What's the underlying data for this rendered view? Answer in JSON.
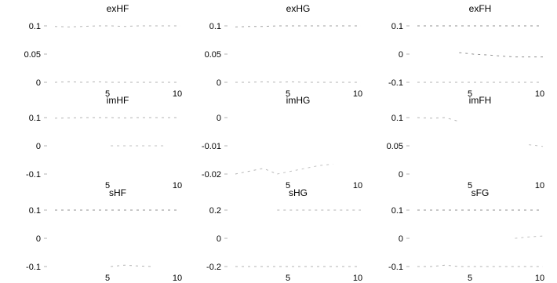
{
  "chart_data": [
    {
      "type": "line",
      "title": "exHF",
      "xlim": [
        1,
        10
      ],
      "ylim": [
        0,
        0.1
      ],
      "xticks": [
        5,
        10
      ],
      "xtick_labels": [
        "5",
        "10"
      ],
      "yticks": [
        0,
        0.05,
        0.1
      ],
      "ytick_labels": [
        "0",
        "0.05",
        "0.1"
      ],
      "series": [
        {
          "color": "#b3b3b3",
          "x": [
            1,
            2,
            3,
            4,
            5,
            6,
            7,
            8,
            9,
            10
          ],
          "y": [
            0.099,
            0.098,
            0.099,
            0.1,
            0.1,
            0.099,
            0.1,
            0.1,
            0.1,
            0.1
          ]
        },
        {
          "color": "#b3b3b3",
          "x": [
            1,
            2,
            3,
            4,
            5,
            6,
            7,
            8,
            9,
            10
          ],
          "y": [
            0.0,
            0.001,
            0.0,
            0.001,
            0.0,
            0.0,
            0.0,
            0.0,
            0.0,
            0.0
          ]
        }
      ]
    },
    {
      "type": "line",
      "title": "exHG",
      "xlim": [
        1,
        10
      ],
      "ylim": [
        0,
        0.1
      ],
      "xticks": [
        5,
        10
      ],
      "xtick_labels": [
        "5",
        "10"
      ],
      "yticks": [
        0,
        0.05,
        0.1
      ],
      "ytick_labels": [
        "0",
        "0.05",
        "0.1"
      ],
      "series": [
        {
          "color": "#a0a0a0",
          "x": [
            1,
            2,
            3,
            4,
            5,
            6,
            7,
            8,
            9,
            10
          ],
          "y": [
            0.098,
            0.099,
            0.099,
            0.1,
            0.1,
            0.1,
            0.1,
            0.1,
            0.1,
            0.1
          ]
        },
        {
          "color": "#b3b3b3",
          "x": [
            1,
            2,
            3,
            4,
            5,
            6,
            7,
            8,
            9,
            10
          ],
          "y": [
            0.0,
            0.0,
            0.001,
            0.0,
            0.001,
            0.0,
            0.0,
            0.0,
            0.0,
            0.0
          ]
        }
      ]
    },
    {
      "type": "line",
      "title": "exFH",
      "xlim": [
        1,
        10
      ],
      "ylim": [
        -0.1,
        0.1
      ],
      "xticks": [
        5,
        10
      ],
      "xtick_labels": [
        "5",
        "10"
      ],
      "yticks": [
        -0.1,
        0,
        0.1
      ],
      "ytick_labels": [
        "-0.1",
        "0",
        "0.1"
      ],
      "series": [
        {
          "color": "#909090",
          "x": [
            1,
            2,
            3,
            4,
            5,
            6,
            7,
            8,
            9,
            10
          ],
          "y": [
            0.1,
            0.1,
            0.1,
            0.1,
            0.1,
            0.1,
            0.1,
            0.1,
            0.1,
            0.1
          ]
        },
        {
          "color": "#909090",
          "x": [
            4,
            5,
            6,
            7,
            8,
            9,
            10
          ],
          "y": [
            0.005,
            0.0,
            -0.003,
            -0.007,
            -0.01,
            -0.01,
            -0.01
          ]
        },
        {
          "color": "#b3b3b3",
          "x": [
            1,
            2,
            3,
            4,
            5,
            6,
            7,
            8,
            9,
            10
          ],
          "y": [
            -0.1,
            -0.1,
            -0.1,
            -0.1,
            -0.1,
            -0.1,
            -0.1,
            -0.1,
            -0.1,
            -0.1
          ]
        }
      ]
    },
    {
      "type": "line",
      "title": "imHF",
      "xlim": [
        1,
        10
      ],
      "ylim": [
        -0.1,
        0.1
      ],
      "xticks": [
        5,
        10
      ],
      "xtick_labels": [
        "5",
        "10"
      ],
      "yticks": [
        -0.1,
        0,
        0.1
      ],
      "ytick_labels": [
        "-0.1",
        "0",
        "0.1"
      ],
      "series": [
        {
          "color": "#b3b3b3",
          "x": [
            1,
            2,
            3,
            4,
            5,
            6,
            7,
            8,
            9,
            10
          ],
          "y": [
            0.098,
            0.099,
            0.1,
            0.1,
            0.1,
            0.099,
            0.1,
            0.1,
            0.1,
            0.1
          ]
        },
        {
          "color": "#c0c0c0",
          "x": [
            5,
            6,
            7,
            8,
            9
          ],
          "y": [
            0.0,
            0.0,
            0.0,
            0.0,
            0.0
          ]
        }
      ]
    },
    {
      "type": "line",
      "title": "imHG",
      "xlim": [
        1,
        10
      ],
      "ylim": [
        -0.02,
        0
      ],
      "xticks": [
        5,
        10
      ],
      "xtick_labels": [
        "5",
        "10"
      ],
      "yticks": [
        -0.02,
        -0.01,
        0
      ],
      "ytick_labels": [
        "-0.02",
        "-0.01",
        "0"
      ],
      "series": [
        {
          "color": "#b3b3b3",
          "x": [
            1,
            2,
            3,
            4
          ],
          "y": [
            -0.02,
            -0.019,
            -0.018,
            -0.02
          ]
        },
        {
          "color": "#c0c0c0",
          "x": [
            4,
            5,
            6,
            7,
            8
          ],
          "y": [
            -0.02,
            -0.019,
            -0.018,
            -0.017,
            -0.0165
          ]
        }
      ]
    },
    {
      "type": "line",
      "title": "imFH",
      "xlim": [
        1,
        10
      ],
      "ylim": [
        0,
        0.1
      ],
      "xticks": [
        5,
        10
      ],
      "xtick_labels": [
        "5",
        "10"
      ],
      "yticks": [
        0,
        0.05,
        0.1
      ],
      "ytick_labels": [
        "0",
        "0.05",
        "0.1"
      ],
      "series": [
        {
          "color": "#b3b3b3",
          "x": [
            1,
            2,
            3,
            4
          ],
          "y": [
            0.1,
            0.099,
            0.1,
            0.093
          ]
        },
        {
          "color": "#c0c0c0",
          "x": [
            9,
            10
          ],
          "y": [
            0.052,
            0.049
          ]
        }
      ]
    },
    {
      "type": "line",
      "title": "sHF",
      "xlim": [
        1,
        10
      ],
      "ylim": [
        -0.1,
        0.1
      ],
      "xticks": [
        5,
        10
      ],
      "xtick_labels": [
        "5",
        "10"
      ],
      "yticks": [
        -0.1,
        0,
        0.1
      ],
      "ytick_labels": [
        "-0.1",
        "0",
        "0.1"
      ],
      "series": [
        {
          "color": "#909090",
          "x": [
            1,
            2,
            3,
            4,
            5,
            6,
            7,
            8,
            9,
            10
          ],
          "y": [
            0.1,
            0.1,
            0.1,
            0.1,
            0.1,
            0.1,
            0.1,
            0.1,
            0.1,
            0.1
          ]
        },
        {
          "color": "#b3b3b3",
          "x": [
            5,
            6,
            7,
            8
          ],
          "y": [
            -0.1,
            -0.095,
            -0.098,
            -0.1
          ]
        }
      ]
    },
    {
      "type": "line",
      "title": "sHG",
      "xlim": [
        1,
        10
      ],
      "ylim": [
        -0.2,
        0.2
      ],
      "xticks": [
        5,
        10
      ],
      "xtick_labels": [
        "5",
        "10"
      ],
      "yticks": [
        -0.2,
        0,
        0.2
      ],
      "ytick_labels": [
        "-0.2",
        "0",
        "0.2"
      ],
      "series": [
        {
          "color": "#b3b3b3",
          "x": [
            4,
            5,
            6,
            7,
            8,
            9,
            10
          ],
          "y": [
            0.2,
            0.2,
            0.2,
            0.2,
            0.2,
            0.2,
            0.2
          ]
        },
        {
          "color": "#b3b3b3",
          "x": [
            1,
            2,
            3,
            4,
            5,
            6,
            7,
            8,
            9,
            10
          ],
          "y": [
            -0.2,
            -0.2,
            -0.2,
            -0.2,
            -0.2,
            -0.2,
            -0.2,
            -0.2,
            -0.2,
            -0.2
          ]
        }
      ]
    },
    {
      "type": "line",
      "title": "sFG",
      "xlim": [
        1,
        10
      ],
      "ylim": [
        -0.1,
        0.1
      ],
      "xticks": [
        5,
        10
      ],
      "xtick_labels": [
        "5",
        "10"
      ],
      "yticks": [
        -0.1,
        0,
        0.1
      ],
      "ytick_labels": [
        "-0.1",
        "0",
        "0.1"
      ],
      "series": [
        {
          "color": "#909090",
          "x": [
            1,
            2,
            3,
            4,
            5,
            6,
            7,
            8,
            9,
            10
          ],
          "y": [
            0.1,
            0.1,
            0.1,
            0.1,
            0.1,
            0.1,
            0.1,
            0.1,
            0.1,
            0.1
          ]
        },
        {
          "color": "#c0c0c0",
          "x": [
            8,
            9,
            10
          ],
          "y": [
            0.0,
            0.005,
            0.008
          ]
        },
        {
          "color": "#b3b3b3",
          "x": [
            1,
            2,
            3,
            4,
            5,
            6,
            7,
            8,
            9,
            10
          ],
          "y": [
            -0.1,
            -0.1,
            -0.095,
            -0.1,
            -0.1,
            -0.1,
            -0.1,
            -0.1,
            -0.1,
            -0.1
          ]
        }
      ]
    }
  ]
}
